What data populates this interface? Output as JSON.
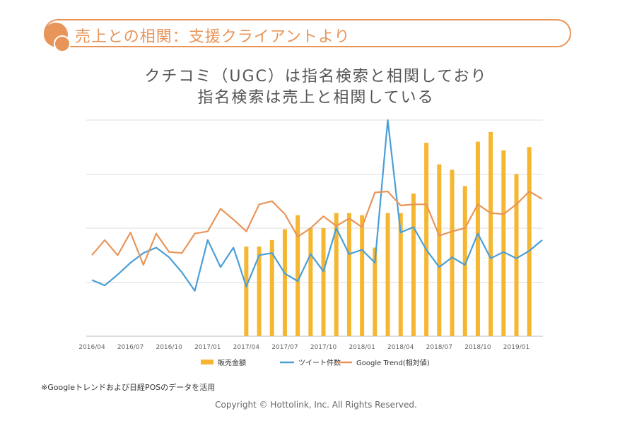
{
  "header": {
    "title": "売上との相関：支援クライアントより"
  },
  "subtitle": {
    "line1": "クチコミ（UGC）は指名検索と相関しており",
    "line2": "指名検索は売上と相関している"
  },
  "footnote": "※Googleトレンドおよび日経POSのデータを活用",
  "copyright": "Copyright © Hottolink, Inc. All Rights Reserved.",
  "colors": {
    "accent": "#e8955a",
    "sales": "#f5b731",
    "tweets": "#4a9fd8",
    "trend": "#e8955a"
  },
  "chart_data": {
    "type": "bar+line",
    "x": [
      "2016/04",
      "2016/05",
      "2016/06",
      "2016/07",
      "2016/08",
      "2016/09",
      "2016/10",
      "2016/11",
      "2016/12",
      "2017/01",
      "2017/02",
      "2017/03",
      "2017/04",
      "2017/05",
      "2017/06",
      "2017/07",
      "2017/08",
      "2017/09",
      "2017/10",
      "2017/11",
      "2017/12",
      "2018/01",
      "2018/02",
      "2018/03",
      "2018/04",
      "2018/05",
      "2018/06",
      "2018/07",
      "2018/08",
      "2018/09",
      "2018/10",
      "2018/11",
      "2018/12",
      "2019/01",
      "2019/02",
      "2019/03"
    ],
    "tick_labels": [
      "2016/04",
      "2016/07",
      "2016/10",
      "2017/01",
      "2017/04",
      "2017/07",
      "2017/10",
      "2018/01",
      "2018/04",
      "2018/07",
      "2018/10",
      "2019/01"
    ],
    "ylim": [
      0,
      100
    ],
    "grid": true,
    "legend_position": "bottom",
    "series": [
      {
        "name": "販売金額",
        "type": "bar",
        "values": [
          null,
          null,
          null,
          null,
          null,
          null,
          null,
          null,
          null,
          null,
          null,
          null,
          41.5,
          41.5,
          44.5,
          49.5,
          56,
          50,
          50,
          57,
          57,
          56,
          41,
          57,
          57,
          66,
          89.5,
          79.5,
          77,
          69.5,
          90,
          94.5,
          86,
          75,
          87.5,
          null
        ]
      },
      {
        "name": "ツイート件数",
        "type": "line",
        "values": [
          26,
          23.5,
          28.5,
          34,
          38.5,
          41,
          36.5,
          29.5,
          21,
          44.5,
          32,
          41,
          23,
          37.5,
          38.5,
          29,
          25.5,
          38,
          30,
          50,
          38,
          40,
          34,
          100,
          48,
          50.5,
          40,
          32,
          36.5,
          33,
          47.5,
          36,
          39,
          36,
          39.5,
          44.5
        ]
      },
      {
        "name": "Google Trend(相対値)",
        "type": "line",
        "values": [
          37.5,
          44.5,
          37.5,
          48,
          33,
          47.5,
          39,
          38.5,
          47.5,
          48.5,
          59,
          54,
          48.5,
          61,
          62.5,
          56.5,
          46,
          50,
          55.5,
          51,
          54.5,
          50.5,
          66.5,
          67,
          60.5,
          61,
          61,
          46.5,
          48.5,
          50,
          61,
          57,
          56.5,
          61,
          67,
          63.5
        ]
      }
    ]
  }
}
